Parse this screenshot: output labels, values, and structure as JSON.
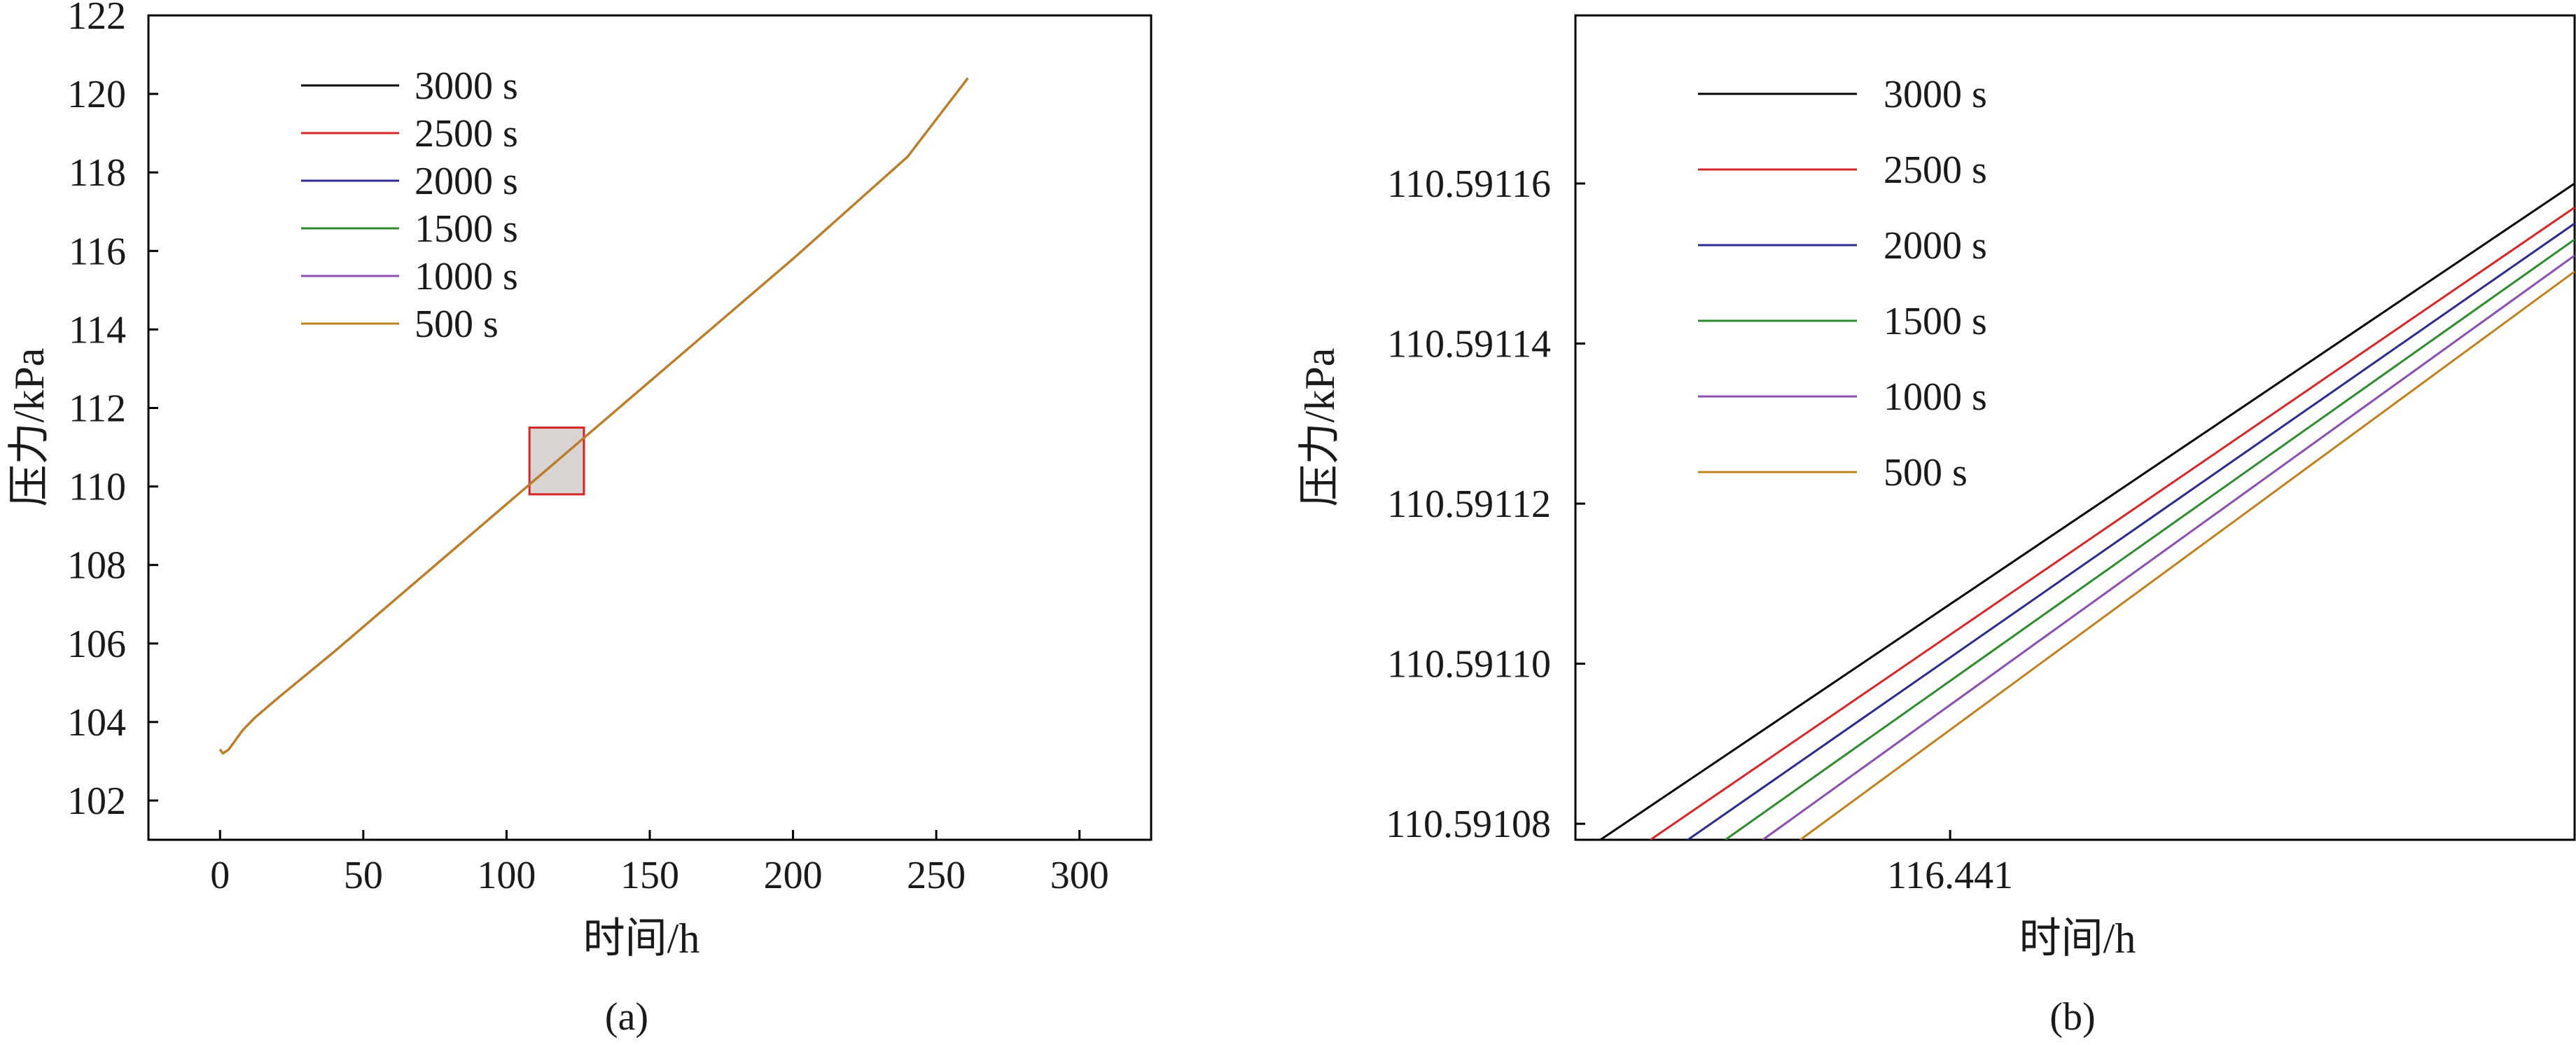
{
  "figure": {
    "panel_a_caption": "(a)",
    "panel_b_caption": "(b)"
  },
  "chart_data": [
    {
      "type": "line",
      "panel": "a",
      "xlabel": "时间/h",
      "ylabel": "压力/kPa",
      "xlim": [
        -25,
        325
      ],
      "ylim": [
        101,
        122
      ],
      "xticks": [
        0,
        50,
        100,
        150,
        200,
        250,
        300
      ],
      "yticks": [
        102,
        104,
        106,
        108,
        110,
        112,
        114,
        116,
        118,
        120,
        122
      ],
      "grid": false,
      "legend_position": "top-left",
      "series": [
        {
          "name": "3000 s",
          "color": "#000000",
          "x": [
            0,
            1,
            2,
            3,
            5,
            8,
            12,
            20,
            40,
            80,
            120,
            160,
            200,
            240,
            261
          ],
          "y": [
            103.3,
            103.2,
            103.25,
            103.3,
            103.5,
            103.8,
            104.1,
            104.6,
            105.8,
            108.3,
            110.8,
            113.3,
            115.8,
            118.4,
            120.4
          ]
        },
        {
          "name": "2500 s",
          "color": "#d62728",
          "x": [
            0,
            1,
            2,
            3,
            5,
            8,
            12,
            20,
            40,
            80,
            120,
            160,
            200,
            240,
            261
          ],
          "y": [
            103.3,
            103.2,
            103.25,
            103.3,
            103.5,
            103.8,
            104.1,
            104.6,
            105.8,
            108.3,
            110.8,
            113.3,
            115.8,
            118.4,
            120.4
          ]
        },
        {
          "name": "2000 s",
          "color": "#2b2b8c",
          "x": [
            0,
            1,
            2,
            3,
            5,
            8,
            12,
            20,
            40,
            80,
            120,
            160,
            200,
            240,
            261
          ],
          "y": [
            103.3,
            103.2,
            103.25,
            103.3,
            103.5,
            103.8,
            104.1,
            104.6,
            105.8,
            108.3,
            110.8,
            113.3,
            115.8,
            118.4,
            120.4
          ]
        },
        {
          "name": "1500 s",
          "color": "#2e8b2e",
          "x": [
            0,
            1,
            2,
            3,
            5,
            8,
            12,
            20,
            40,
            80,
            120,
            160,
            200,
            240,
            261
          ],
          "y": [
            103.3,
            103.2,
            103.25,
            103.3,
            103.5,
            103.8,
            104.1,
            104.6,
            105.8,
            108.3,
            110.8,
            113.3,
            115.8,
            118.4,
            120.4
          ]
        },
        {
          "name": "1000 s",
          "color": "#8a4fb0",
          "x": [
            0,
            1,
            2,
            3,
            5,
            8,
            12,
            20,
            40,
            80,
            120,
            160,
            200,
            240,
            261
          ],
          "y": [
            103.3,
            103.2,
            103.25,
            103.3,
            103.5,
            103.8,
            104.1,
            104.6,
            105.8,
            108.3,
            110.8,
            113.3,
            115.8,
            118.4,
            120.4
          ]
        },
        {
          "name": "500 s",
          "color": "#c0801e",
          "x": [
            0,
            1,
            2,
            3,
            5,
            8,
            12,
            20,
            40,
            80,
            120,
            160,
            200,
            240,
            261
          ],
          "y": [
            103.3,
            103.2,
            103.25,
            103.3,
            103.5,
            103.8,
            104.1,
            104.6,
            105.8,
            108.3,
            110.8,
            113.3,
            115.8,
            118.4,
            120.4
          ]
        }
      ],
      "annotations": [
        {
          "type": "zoom-box",
          "x_range": [
            108,
            127
          ],
          "y_range": [
            109.8,
            111.5
          ],
          "edge_color": "#d62728",
          "fill_color": "#d9d4d2"
        }
      ]
    },
    {
      "type": "line",
      "panel": "b",
      "xlabel": "时间/h",
      "ylabel": "压力/kPa",
      "xlim": [
        116.4404,
        116.442
      ],
      "ylim": [
        110.591078,
        110.591181
      ],
      "xticks": [
        116.441
      ],
      "xtick_labels": [
        "116.441"
      ],
      "yticks": [
        110.59108,
        110.5911,
        110.59112,
        110.59114,
        110.59116
      ],
      "ytick_labels": [
        "110.59108",
        "110.59110",
        "110.59112",
        "110.59114",
        "110.59116"
      ],
      "grid": false,
      "legend_position": "top-left",
      "series": [
        {
          "name": "3000 s",
          "color": "#000000",
          "x": [
            116.44044,
            116.442
          ],
          "y": [
            110.591078,
            110.59116
          ]
        },
        {
          "name": "2500 s",
          "color": "#d62728",
          "x": [
            116.44052,
            116.442
          ],
          "y": [
            110.591078,
            110.591157
          ]
        },
        {
          "name": "2000 s",
          "color": "#2b2b8c",
          "x": [
            116.44058,
            116.442
          ],
          "y": [
            110.591078,
            110.591155
          ]
        },
        {
          "name": "1500 s",
          "color": "#2e8b2e",
          "x": [
            116.44064,
            116.442
          ],
          "y": [
            110.591078,
            110.591153
          ]
        },
        {
          "name": "1000 s",
          "color": "#8a4fb0",
          "x": [
            116.4407,
            116.442
          ],
          "y": [
            110.591078,
            110.591151
          ]
        },
        {
          "name": "500 s",
          "color": "#c0801e",
          "x": [
            116.44076,
            116.442
          ],
          "y": [
            110.591078,
            110.591149
          ]
        }
      ]
    }
  ]
}
